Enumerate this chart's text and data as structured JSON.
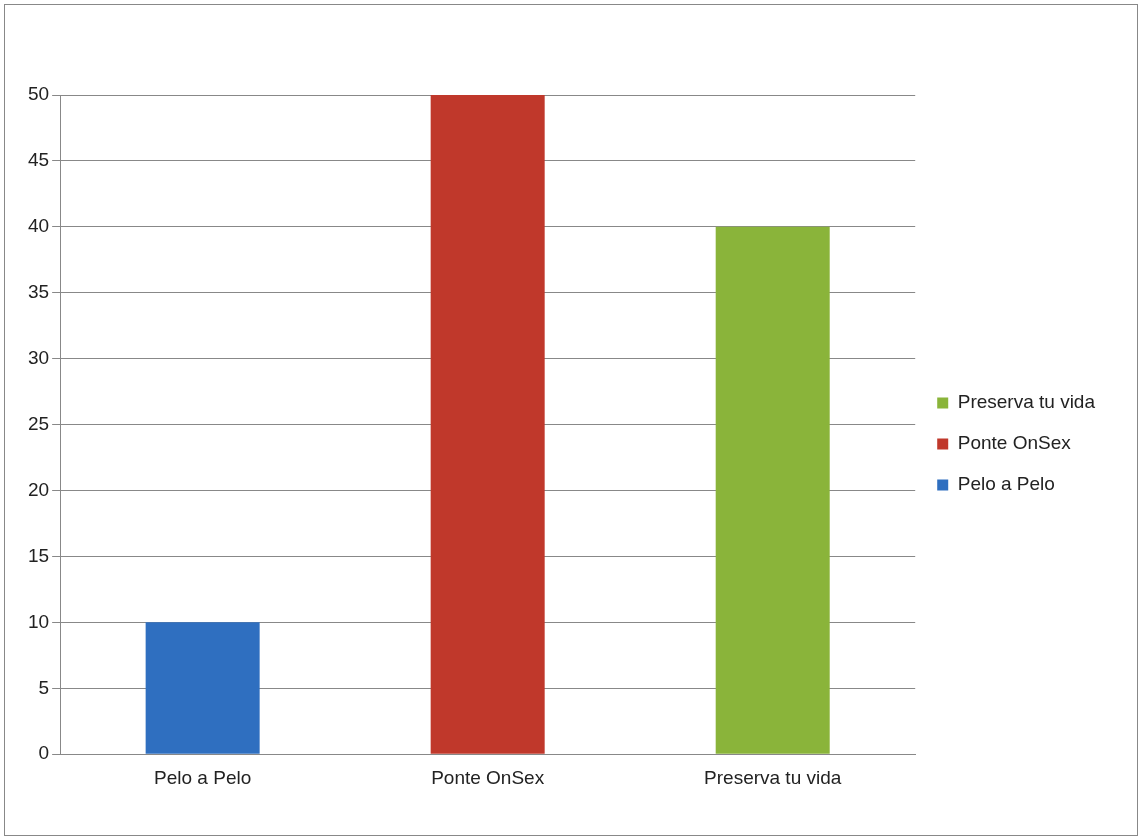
{
  "chart_data": {
    "type": "bar",
    "categories": [
      "Pelo a Pelo",
      "Ponte OnSex",
      "Preserva tu vida"
    ],
    "series": [
      {
        "name": "Pelo a Pelo",
        "color": "#2f6fc0",
        "values": [
          10,
          null,
          null
        ]
      },
      {
        "name": "Ponte OnSex",
        "color": "#c0382b",
        "values": [
          null,
          50,
          null
        ]
      },
      {
        "name": "Preserva tu vida",
        "color": "#8ab43a",
        "values": [
          null,
          null,
          40
        ]
      }
    ],
    "ylim": [
      0,
      50
    ],
    "yticks": [
      0,
      5,
      10,
      15,
      20,
      25,
      30,
      35,
      40,
      45,
      50
    ],
    "grid": "y",
    "legend": "right"
  }
}
